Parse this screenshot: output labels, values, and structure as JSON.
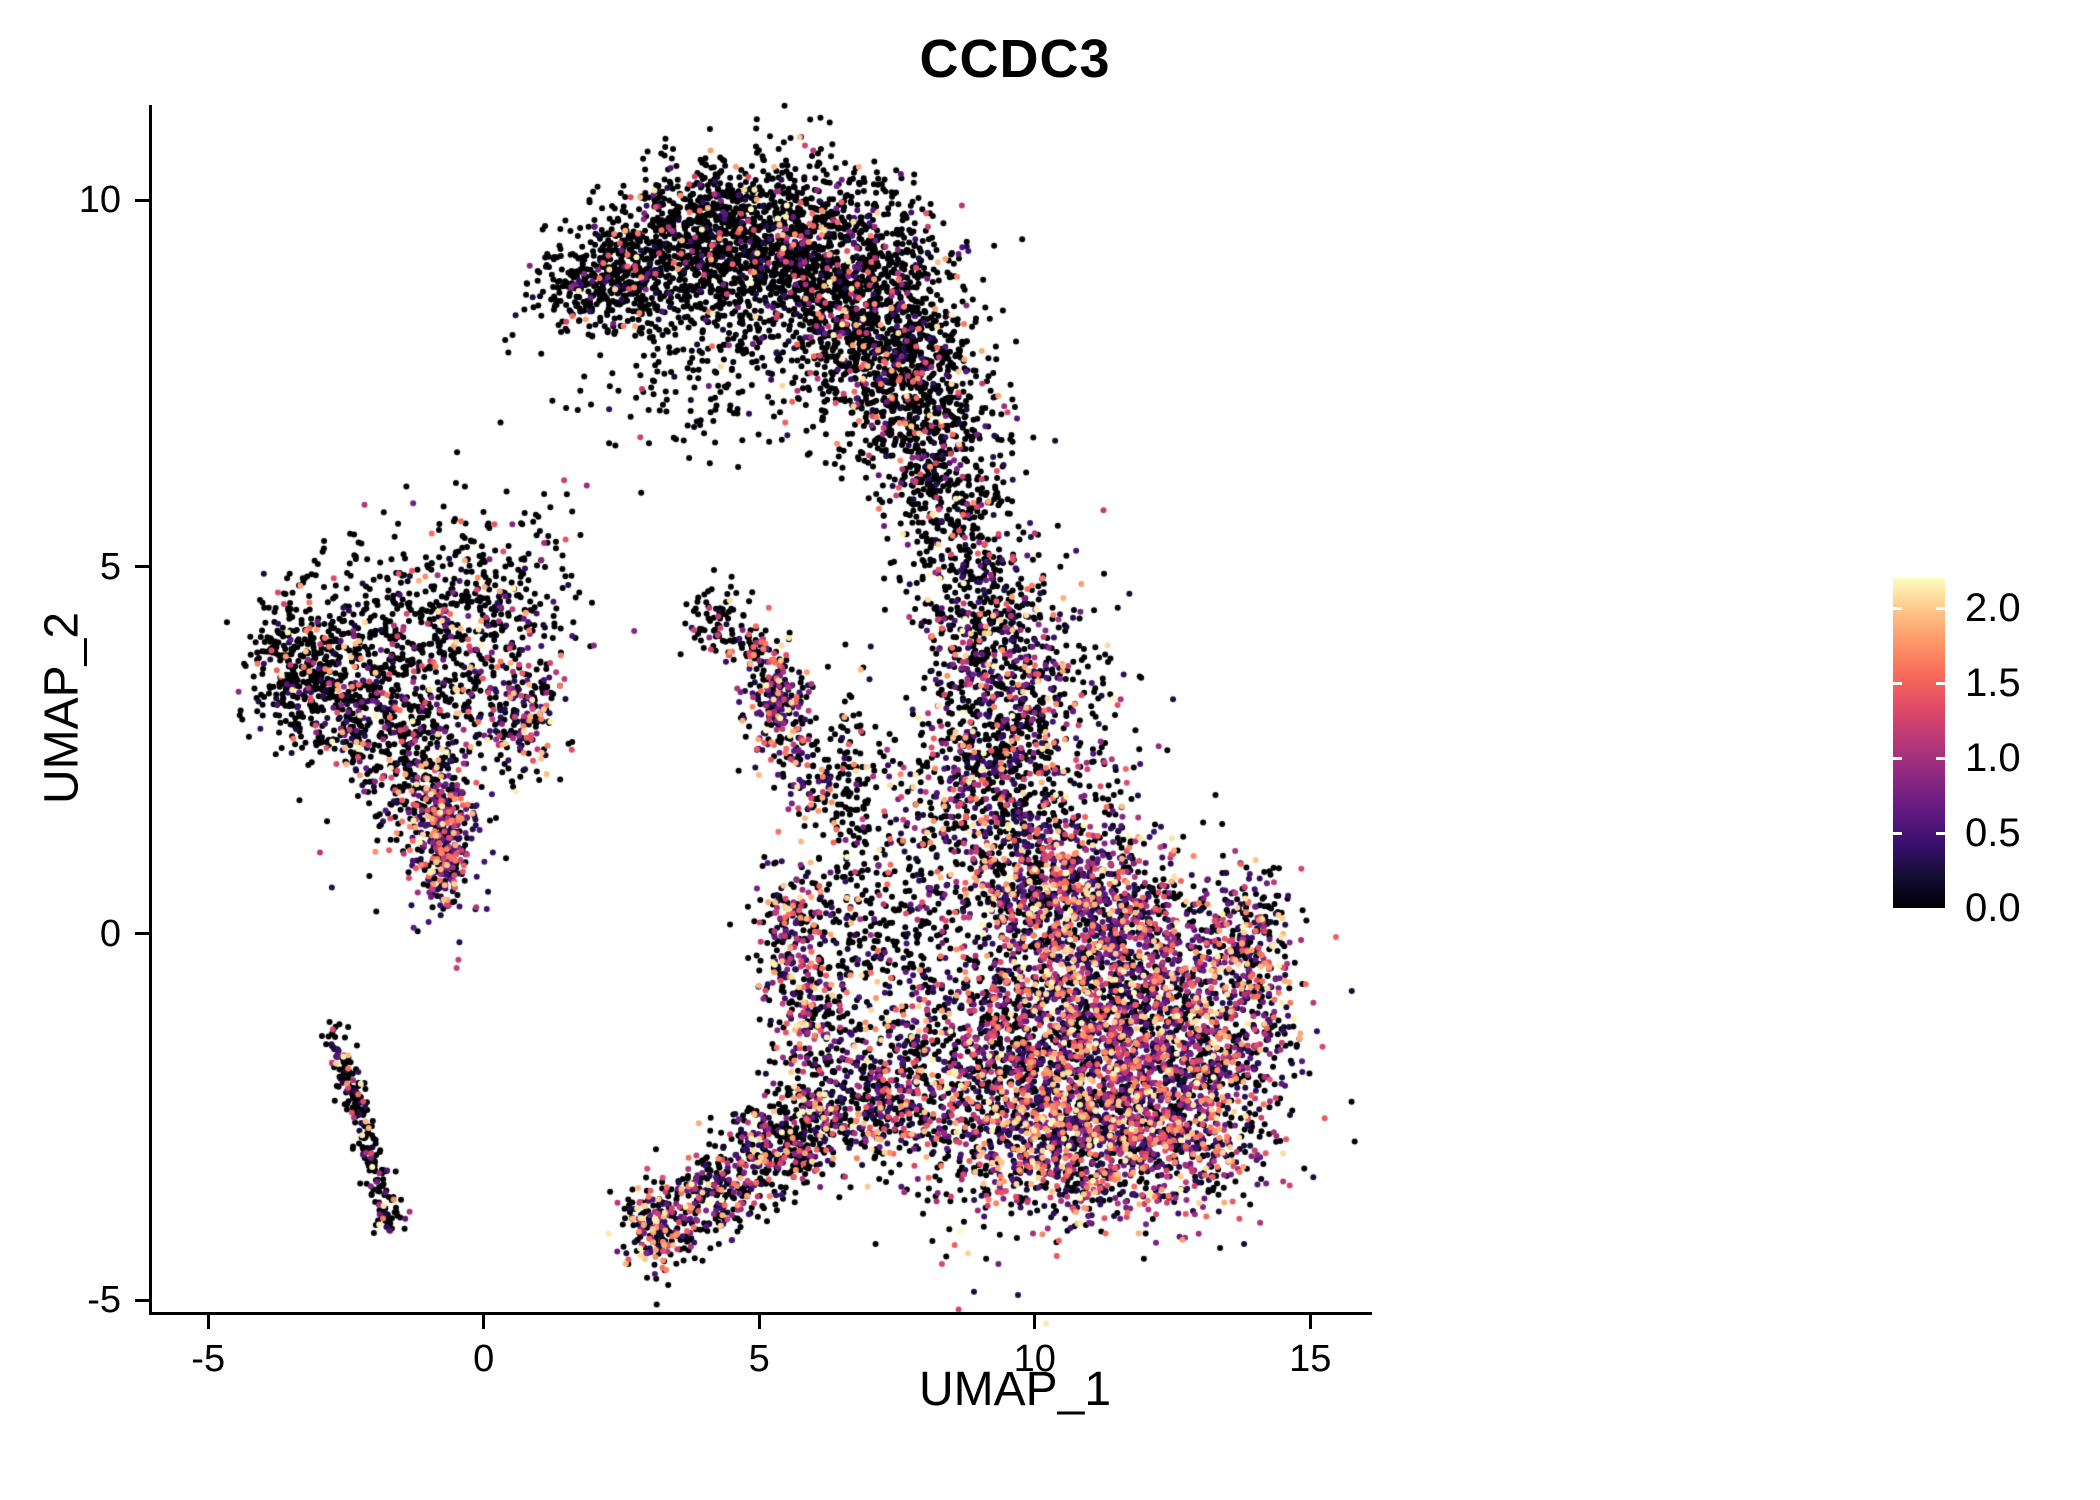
{
  "title": "CCDC3",
  "chart_data": {
    "type": "scatter",
    "title": "CCDC3",
    "xlabel": "UMAP_1",
    "ylabel": "UMAP_2",
    "xlim": [
      -6.02,
      16.12
    ],
    "ylim": [
      -5.16,
      11.3
    ],
    "grid": false,
    "legend_position": "right",
    "x_ticks": [
      {
        "value": -5,
        "label": "-5"
      },
      {
        "value": 0,
        "label": "0"
      },
      {
        "value": 5,
        "label": "5"
      },
      {
        "value": 10,
        "label": "10"
      },
      {
        "value": 15,
        "label": "15"
      }
    ],
    "y_ticks": [
      {
        "value": 10,
        "label": "10"
      },
      {
        "value": 5,
        "label": "5"
      },
      {
        "value": 0,
        "label": "0"
      },
      {
        "value": -5,
        "label": "-5"
      }
    ],
    "colorbar": {
      "ticks": [
        {
          "value": 2.0,
          "label": "2.0"
        },
        {
          "value": 1.5,
          "label": "1.5"
        },
        {
          "value": 1.0,
          "label": "1.0"
        },
        {
          "value": 0.5,
          "label": "0.5"
        },
        {
          "value": 0.0,
          "label": "0.0"
        }
      ]
    },
    "colormap": {
      "name": "magma",
      "vmax": 2.2,
      "stops": [
        {
          "t": 0.0,
          "rgb": [
            0,
            0,
            4
          ]
        },
        {
          "t": 0.1,
          "rgb": [
            20,
            14,
            54
          ]
        },
        {
          "t": 0.2,
          "rgb": [
            59,
            15,
            112
          ]
        },
        {
          "t": 0.3,
          "rgb": [
            100,
            26,
            128
          ]
        },
        {
          "t": 0.4,
          "rgb": [
            140,
            41,
            129
          ]
        },
        {
          "t": 0.5,
          "rgb": [
            183,
            55,
            121
          ]
        },
        {
          "t": 0.6,
          "rgb": [
            222,
            73,
            104
          ]
        },
        {
          "t": 0.7,
          "rgb": [
            247,
            104,
            91
          ]
        },
        {
          "t": 0.8,
          "rgb": [
            254,
            148,
            103
          ]
        },
        {
          "t": 0.9,
          "rgb": [
            254,
            196,
            136
          ]
        },
        {
          "t": 1.0,
          "rgb": [
            252,
            253,
            191
          ]
        }
      ]
    },
    "point_radius": 3.0,
    "seed": 42,
    "clusters": [
      {
        "name": "arc-left-tip",
        "shape": "gauss",
        "cx": 1.5,
        "cy": 8.8,
        "sx": 0.5,
        "sy": 0.4,
        "n": 70,
        "p0": 0.85
      },
      {
        "name": "arc-1",
        "shape": "gauss",
        "cx": 2.1,
        "cy": 8.85,
        "sx": 0.45,
        "sy": 0.3,
        "n": 220,
        "p0": 0.88
      },
      {
        "name": "arc-2",
        "shape": "gauss",
        "cx": 3.0,
        "cy": 9.2,
        "sx": 0.6,
        "sy": 0.45,
        "n": 350,
        "p0": 0.87
      },
      {
        "name": "arc-3",
        "shape": "gauss",
        "cx": 4.2,
        "cy": 9.6,
        "sx": 0.8,
        "sy": 0.5,
        "n": 550,
        "p0": 0.86
      },
      {
        "name": "arc-4",
        "shape": "gauss",
        "cx": 5.5,
        "cy": 9.4,
        "sx": 0.8,
        "sy": 0.6,
        "n": 650,
        "p0": 0.85
      },
      {
        "name": "arc-5",
        "shape": "gauss",
        "cx": 6.6,
        "cy": 8.8,
        "sx": 0.8,
        "sy": 0.7,
        "n": 700,
        "p0": 0.84
      },
      {
        "name": "arc-6",
        "shape": "gauss",
        "cx": 7.5,
        "cy": 7.9,
        "sx": 0.7,
        "sy": 0.8,
        "n": 650,
        "p0": 0.82
      },
      {
        "name": "arc-7",
        "shape": "gauss",
        "cx": 8.2,
        "cy": 6.8,
        "sx": 0.55,
        "sy": 0.9,
        "n": 500,
        "p0": 0.8
      },
      {
        "name": "arc-interior",
        "shape": "gauss",
        "cx": 5.3,
        "cy": 8.2,
        "sx": 1.5,
        "sy": 0.9,
        "n": 300,
        "p0": 0.88
      },
      {
        "name": "arc-under-sparse",
        "shape": "gauss",
        "cx": 3.6,
        "cy": 8.0,
        "sx": 0.9,
        "sy": 0.7,
        "n": 120,
        "p0": 0.9
      },
      {
        "name": "neck-top",
        "shape": "gauss",
        "cx": 8.8,
        "cy": 5.2,
        "sx": 0.55,
        "sy": 0.8,
        "n": 300,
        "p0": 0.8
      },
      {
        "name": "neck-mid",
        "shape": "gauss",
        "cx": 9.4,
        "cy": 3.6,
        "sx": 0.75,
        "sy": 0.8,
        "n": 550,
        "p0": 0.62
      },
      {
        "name": "neck-low",
        "shape": "gauss",
        "cx": 9.0,
        "cy": 2.2,
        "sx": 0.7,
        "sy": 0.7,
        "n": 450,
        "p0": 0.55
      },
      {
        "name": "neck-right-sparse",
        "shape": "gauss",
        "cx": 10.6,
        "cy": 2.6,
        "sx": 0.8,
        "sy": 0.8,
        "n": 180,
        "p0": 0.7
      },
      {
        "name": "main-top",
        "shape": "gauss",
        "cx": 10.8,
        "cy": 0.6,
        "sx": 0.9,
        "sy": 0.55,
        "n": 700,
        "p0": 0.4
      },
      {
        "name": "main-upper",
        "shape": "gauss",
        "cx": 11.6,
        "cy": -0.6,
        "sx": 1.2,
        "sy": 0.65,
        "n": 1100,
        "p0": 0.33
      },
      {
        "name": "main-lower",
        "shape": "gauss",
        "cx": 11.4,
        "cy": -1.9,
        "sx": 1.3,
        "sy": 0.65,
        "n": 1100,
        "p0": 0.32
      },
      {
        "name": "main-bottom",
        "shape": "gauss",
        "cx": 10.6,
        "cy": -3.0,
        "sx": 1.0,
        "sy": 0.5,
        "n": 600,
        "p0": 0.35
      },
      {
        "name": "main-bottom-right",
        "shape": "gauss",
        "cx": 12.6,
        "cy": -2.7,
        "sx": 0.9,
        "sy": 0.55,
        "n": 550,
        "p0": 0.32
      },
      {
        "name": "main-right",
        "shape": "gauss",
        "cx": 13.6,
        "cy": -1.2,
        "sx": 0.6,
        "sy": 0.7,
        "n": 350,
        "p0": 0.38
      },
      {
        "name": "main-right-tip",
        "shape": "gauss",
        "cx": 14.0,
        "cy": 0.0,
        "sx": 0.4,
        "sy": 0.5,
        "n": 180,
        "p0": 0.45
      },
      {
        "name": "main-left-edge",
        "shape": "gauss",
        "cx": 9.8,
        "cy": -1.4,
        "sx": 0.6,
        "sy": 0.9,
        "n": 400,
        "p0": 0.5
      },
      {
        "name": "main-left-low",
        "shape": "gauss",
        "cx": 8.9,
        "cy": -2.5,
        "sx": 0.6,
        "sy": 0.8,
        "n": 300,
        "p0": 0.55
      },
      {
        "name": "main-left-top",
        "shape": "gauss",
        "cx": 9.9,
        "cy": 0.9,
        "sx": 0.5,
        "sy": 0.5,
        "n": 250,
        "p0": 0.5
      },
      {
        "name": "left-far",
        "shape": "gauss",
        "cx": -3.4,
        "cy": 3.7,
        "sx": 0.45,
        "sy": 0.45,
        "n": 300,
        "p0": 0.82
      },
      {
        "name": "left-mid",
        "shape": "gauss",
        "cx": -2.5,
        "cy": 3.2,
        "sx": 0.5,
        "sy": 0.5,
        "n": 280,
        "p0": 0.78
      },
      {
        "name": "left-core",
        "shape": "gauss",
        "cx": -1.0,
        "cy": 3.3,
        "sx": 0.8,
        "sy": 0.8,
        "n": 400,
        "p0": 0.78
      },
      {
        "name": "left-top",
        "shape": "gauss",
        "cx": -0.3,
        "cy": 4.5,
        "sx": 0.5,
        "sy": 0.6,
        "n": 200,
        "p0": 0.8
      },
      {
        "name": "left-pink-clump",
        "shape": "gauss",
        "cx": 0.6,
        "cy": 3.0,
        "sx": 0.4,
        "sy": 0.4,
        "n": 180,
        "p0": 0.5
      },
      {
        "name": "left-hot-clump",
        "shape": "gauss",
        "cx": -0.7,
        "cy": 1.3,
        "sx": 0.35,
        "sy": 0.5,
        "n": 320,
        "p0": 0.33
      },
      {
        "name": "left-lower",
        "shape": "gauss",
        "cx": -1.4,
        "cy": 2.3,
        "sx": 0.5,
        "sy": 0.6,
        "n": 220,
        "p0": 0.72
      },
      {
        "name": "left-top-sparse",
        "shape": "gauss",
        "cx": -2.0,
        "cy": 4.5,
        "sx": 0.9,
        "sy": 0.6,
        "n": 150,
        "p0": 0.85
      },
      {
        "name": "left-right-arm",
        "shape": "gauss",
        "cx": 0.9,
        "cy": 4.4,
        "sx": 0.5,
        "sy": 0.8,
        "n": 120,
        "p0": 0.7
      },
      {
        "name": "left-hot-column",
        "shape": "streak",
        "x1": -0.9,
        "y1": 2.0,
        "x2": -0.6,
        "y2": 0.8,
        "s": 0.15,
        "n": 100,
        "p0": 0.4
      },
      {
        "name": "sw-streak",
        "shape": "streak",
        "x1": -2.75,
        "y1": -1.3,
        "x2": -1.8,
        "y2": -3.6,
        "s": 0.12,
        "n": 200,
        "p0": 0.8
      },
      {
        "name": "sw-streak-end",
        "shape": "gauss",
        "cx": -1.75,
        "cy": -3.8,
        "sx": 0.15,
        "sy": 0.15,
        "n": 40,
        "p0": 0.7
      },
      {
        "name": "center-small-1",
        "shape": "gauss",
        "cx": 4.3,
        "cy": 4.3,
        "sx": 0.3,
        "sy": 0.25,
        "n": 90,
        "p0": 0.85
      },
      {
        "name": "center-small-2",
        "shape": "gauss",
        "cx": 5.0,
        "cy": 3.9,
        "sx": 0.2,
        "sy": 0.2,
        "n": 50,
        "p0": 0.8
      },
      {
        "name": "center-hot-clump",
        "shape": "gauss",
        "cx": 5.3,
        "cy": 3.1,
        "sx": 0.28,
        "sy": 0.38,
        "n": 230,
        "p0": 0.38
      },
      {
        "name": "center-small-3",
        "shape": "gauss",
        "cx": 5.9,
        "cy": 2.2,
        "sx": 0.3,
        "sy": 0.35,
        "n": 90,
        "p0": 0.55
      },
      {
        "name": "limb-1",
        "shape": "gauss",
        "cx": 3.2,
        "cy": -4.0,
        "sx": 0.35,
        "sy": 0.3,
        "n": 240,
        "p0": 0.5
      },
      {
        "name": "limb-2",
        "shape": "gauss",
        "cx": 4.2,
        "cy": -3.5,
        "sx": 0.5,
        "sy": 0.3,
        "n": 220,
        "p0": 0.6
      },
      {
        "name": "limb-3",
        "shape": "gauss",
        "cx": 5.3,
        "cy": -2.9,
        "sx": 0.5,
        "sy": 0.35,
        "n": 280,
        "p0": 0.55
      },
      {
        "name": "limb-4",
        "shape": "gauss",
        "cx": 6.3,
        "cy": -2.5,
        "sx": 0.55,
        "sy": 0.4,
        "n": 260,
        "p0": 0.5
      },
      {
        "name": "limb-5",
        "shape": "gauss",
        "cx": 7.3,
        "cy": -2.2,
        "sx": 0.5,
        "sy": 0.5,
        "n": 220,
        "p0": 0.5
      },
      {
        "name": "mid-clump",
        "shape": "gauss",
        "cx": 5.6,
        "cy": -0.1,
        "sx": 0.35,
        "sy": 0.55,
        "n": 260,
        "p0": 0.45
      },
      {
        "name": "mid-low",
        "shape": "gauss",
        "cx": 6.1,
        "cy": -1.2,
        "sx": 0.4,
        "sy": 0.5,
        "n": 180,
        "p0": 0.55
      },
      {
        "name": "mid-column",
        "shape": "gauss",
        "cx": 6.9,
        "cy": 0.3,
        "sx": 0.4,
        "sy": 0.9,
        "n": 150,
        "p0": 0.7
      },
      {
        "name": "mid-upper",
        "shape": "gauss",
        "cx": 6.7,
        "cy": 2.0,
        "sx": 0.3,
        "sy": 0.7,
        "n": 120,
        "p0": 0.8
      },
      {
        "name": "gap-scatter",
        "shape": "gauss",
        "cx": 8.1,
        "cy": 0.5,
        "sx": 0.6,
        "sy": 1.0,
        "n": 220,
        "p0": 0.6
      },
      {
        "name": "gap-scatter-low",
        "shape": "gauss",
        "cx": 7.8,
        "cy": -1.5,
        "sx": 0.5,
        "sy": 0.7,
        "n": 200,
        "p0": 0.5
      }
    ]
  }
}
